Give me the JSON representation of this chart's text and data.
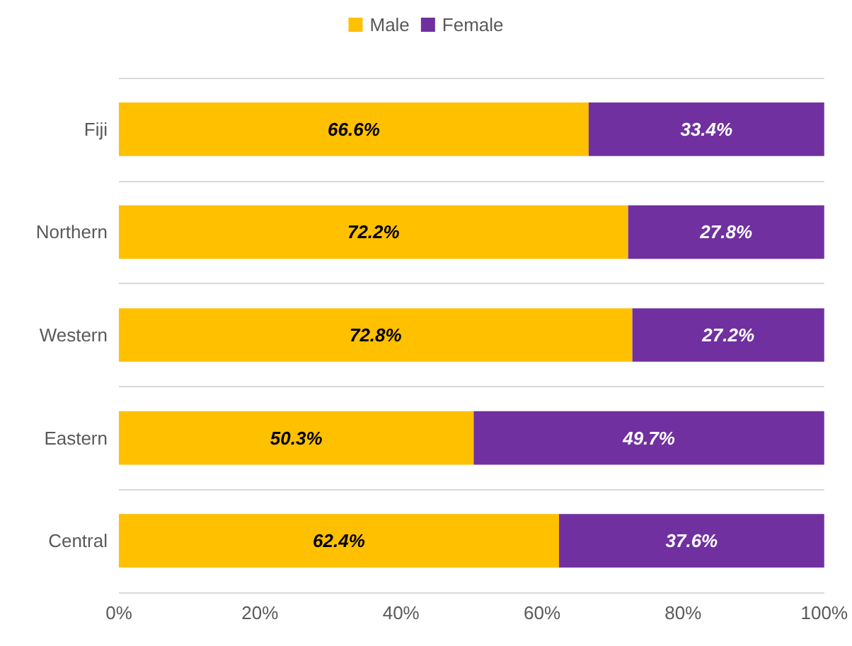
{
  "chart_data": {
    "type": "bar",
    "orientation": "horizontal",
    "stacked": true,
    "legend": "top",
    "grid": "y",
    "categories": [
      "Fiji",
      "Northern",
      "Western",
      "Eastern",
      "Central"
    ],
    "series": [
      {
        "name": "Male",
        "color": "#ffc000",
        "values": [
          66.6,
          72.2,
          72.8,
          50.3,
          62.4
        ],
        "value_labels": [
          "66.6%",
          "72.2%",
          "72.8%",
          "50.3%",
          "62.4%"
        ]
      },
      {
        "name": "Female",
        "color": "#7030a0",
        "values": [
          33.4,
          27.8,
          27.2,
          49.7,
          37.6
        ],
        "value_labels": [
          "33.4%",
          "27.8%",
          "27.2%",
          "49.7%",
          "37.6%"
        ]
      }
    ],
    "xlim": [
      0,
      100
    ],
    "xticks": [
      {
        "value": 0,
        "label": "0%"
      },
      {
        "value": 20,
        "label": "20%"
      },
      {
        "value": 40,
        "label": "40%"
      },
      {
        "value": 60,
        "label": "60%"
      },
      {
        "value": 80,
        "label": "80%"
      },
      {
        "value": 100,
        "label": "100%"
      }
    ]
  }
}
